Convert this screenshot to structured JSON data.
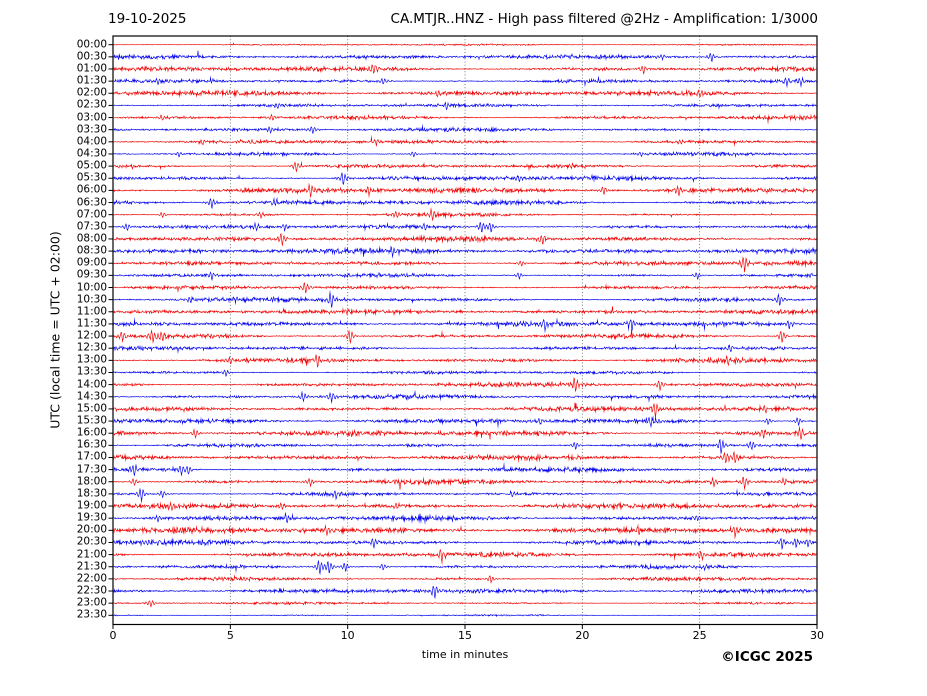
{
  "header": {
    "date": "19-10-2025",
    "title": "CA.MTJR..HNZ - High pass filtered @2Hz - Amplification: 1/3000"
  },
  "axes": {
    "x_title": "time in minutes",
    "y_title": "UTC (local time = UTC + 02:00)",
    "x_ticks": [
      "0",
      "5",
      "10",
      "15",
      "20",
      "25",
      "30"
    ]
  },
  "footer": {
    "credit": "©ICGC 2025"
  },
  "colors": {
    "trace_red": "#f00000",
    "trace_blue": "#0000f0",
    "grid": "#555555",
    "frame": "#000000"
  },
  "chart_data": {
    "type": "line",
    "subtype": "helicorder-seismogram",
    "title": "CA.MTJR..HNZ - High pass filtered @2Hz - Amplification: 1/3000",
    "date": "19-10-2025",
    "xlabel": "time in minutes",
    "ylabel": "UTC (local time = UTC + 02:00)",
    "xlim": [
      0,
      30
    ],
    "x_ticks": [
      0,
      5,
      10,
      15,
      20,
      25,
      30
    ],
    "grid": "vertical-dotted-at-5min",
    "row_interval_minutes": 30,
    "rows": [
      {
        "label": "00:00",
        "color": "red",
        "noise": 0.06,
        "events": []
      },
      {
        "label": "00:30",
        "color": "blue",
        "noise": 0.35,
        "events": [
          [
            23.4,
            0.25
          ],
          [
            25.5,
            0.5
          ]
        ]
      },
      {
        "label": "01:00",
        "color": "red",
        "noise": 0.5,
        "events": [
          [
            11.1,
            0.5
          ],
          [
            22.6,
            0.45
          ]
        ]
      },
      {
        "label": "01:30",
        "color": "blue",
        "noise": 0.5,
        "events": [
          [
            1.9,
            0.3
          ],
          [
            11.5,
            0.35
          ],
          [
            28.7,
            0.45
          ],
          [
            29.3,
            0.4
          ]
        ]
      },
      {
        "label": "02:00",
        "color": "red",
        "noise": 0.55,
        "events": [
          [
            13.8,
            0.35
          ],
          [
            25.0,
            0.3
          ]
        ]
      },
      {
        "label": "02:30",
        "color": "blue",
        "noise": 0.5,
        "events": [
          [
            7.0,
            0.3
          ],
          [
            14.2,
            0.35
          ]
        ]
      },
      {
        "label": "03:00",
        "color": "red",
        "noise": 0.5,
        "events": [
          [
            2.1,
            0.3
          ],
          [
            6.8,
            0.35
          ]
        ]
      },
      {
        "label": "03:30",
        "color": "blue",
        "noise": 0.45,
        "events": [
          [
            6.7,
            0.35
          ],
          [
            8.5,
            0.4
          ]
        ]
      },
      {
        "label": "04:00",
        "color": "red",
        "noise": 0.5,
        "events": [
          [
            3.8,
            0.3
          ],
          [
            11.2,
            0.3
          ],
          [
            24.2,
            0.3
          ]
        ]
      },
      {
        "label": "04:30",
        "color": "blue",
        "noise": 0.45,
        "events": [
          [
            2.8,
            0.3
          ],
          [
            12.8,
            0.3
          ],
          [
            22.5,
            0.3
          ]
        ]
      },
      {
        "label": "05:00",
        "color": "red",
        "noise": 0.55,
        "events": [
          [
            7.8,
            0.6
          ],
          [
            19.5,
            0.3
          ]
        ]
      },
      {
        "label": "05:30",
        "color": "blue",
        "noise": 0.5,
        "events": [
          [
            9.8,
            0.7
          ],
          [
            17.3,
            0.3
          ]
        ]
      },
      {
        "label": "06:00",
        "color": "red",
        "noise": 0.55,
        "events": [
          [
            8.4,
            0.65
          ],
          [
            10.9,
            0.4
          ],
          [
            20.9,
            0.45
          ],
          [
            24.1,
            0.6
          ]
        ]
      },
      {
        "label": "06:30",
        "color": "blue",
        "noise": 0.5,
        "events": [
          [
            4.2,
            0.6
          ],
          [
            6.9,
            0.4
          ]
        ]
      },
      {
        "label": "07:00",
        "color": "red",
        "noise": 0.5,
        "events": [
          [
            2.1,
            0.3
          ],
          [
            6.3,
            0.3
          ],
          [
            12.1,
            0.35
          ],
          [
            13.6,
            0.7
          ]
        ]
      },
      {
        "label": "07:30",
        "color": "blue",
        "noise": 0.5,
        "events": [
          [
            0.6,
            0.4
          ],
          [
            6.1,
            0.35
          ],
          [
            7.3,
            0.4
          ],
          [
            13.3,
            0.35
          ],
          [
            15.7,
            0.6
          ],
          [
            16.1,
            0.55
          ]
        ]
      },
      {
        "label": "08:00",
        "color": "red",
        "noise": 0.55,
        "events": [
          [
            7.2,
            0.75
          ],
          [
            18.3,
            0.55
          ]
        ]
      },
      {
        "label": "08:30",
        "color": "blue",
        "noise": 0.5,
        "events": [
          [
            11.9,
            0.5
          ]
        ]
      },
      {
        "label": "09:00",
        "color": "red",
        "noise": 0.55,
        "events": [
          [
            17.4,
            0.3
          ],
          [
            26.9,
            0.85
          ]
        ]
      },
      {
        "label": "09:30",
        "color": "blue",
        "noise": 0.5,
        "events": [
          [
            4.2,
            0.5
          ],
          [
            17.3,
            0.35
          ],
          [
            24.9,
            0.4
          ]
        ]
      },
      {
        "label": "10:00",
        "color": "red",
        "noise": 0.55,
        "events": [
          [
            8.2,
            0.6
          ]
        ]
      },
      {
        "label": "10:30",
        "color": "blue",
        "noise": 0.5,
        "events": [
          [
            3.3,
            0.35
          ],
          [
            5.2,
            0.35
          ],
          [
            9.3,
            0.85
          ],
          [
            28.4,
            0.65
          ]
        ]
      },
      {
        "label": "11:00",
        "color": "red",
        "noise": 0.4,
        "events": []
      },
      {
        "label": "11:30",
        "color": "blue",
        "noise": 0.45,
        "events": [
          [
            18.4,
            0.55
          ],
          [
            22.1,
            0.6
          ],
          [
            28.8,
            0.45
          ]
        ]
      },
      {
        "label": "12:00",
        "color": "red",
        "noise": 0.65,
        "events": [
          [
            0.4,
            0.5
          ],
          [
            1.7,
            0.65
          ],
          [
            2.1,
            0.6
          ],
          [
            10.1,
            0.75
          ],
          [
            28.5,
            0.7
          ]
        ]
      },
      {
        "label": "12:30",
        "color": "blue",
        "noise": 0.5,
        "events": [
          [
            26.3,
            0.4
          ]
        ]
      },
      {
        "label": "13:00",
        "color": "red",
        "noise": 0.55,
        "events": [
          [
            5.0,
            0.35
          ],
          [
            8.7,
            0.65
          ],
          [
            26.2,
            0.55
          ]
        ]
      },
      {
        "label": "13:30",
        "color": "blue",
        "noise": 0.45,
        "events": [
          [
            4.8,
            0.35
          ]
        ]
      },
      {
        "label": "14:00",
        "color": "red",
        "noise": 0.55,
        "events": [
          [
            19.7,
            0.75
          ],
          [
            23.3,
            0.55
          ]
        ]
      },
      {
        "label": "14:30",
        "color": "blue",
        "noise": 0.5,
        "events": [
          [
            8.1,
            0.55
          ],
          [
            9.3,
            0.6
          ]
        ]
      },
      {
        "label": "15:00",
        "color": "red",
        "noise": 0.55,
        "events": [
          [
            23.1,
            0.9
          ],
          [
            27.8,
            0.4
          ]
        ]
      },
      {
        "label": "15:30",
        "color": "blue",
        "noise": 0.5,
        "events": [
          [
            18.2,
            0.4
          ],
          [
            22.9,
            0.6
          ],
          [
            27.9,
            0.35
          ],
          [
            29.2,
            0.45
          ]
        ]
      },
      {
        "label": "16:00",
        "color": "red",
        "noise": 0.55,
        "events": [
          [
            3.5,
            0.45
          ],
          [
            27.7,
            0.45
          ],
          [
            29.3,
            0.7
          ]
        ]
      },
      {
        "label": "16:30",
        "color": "blue",
        "noise": 0.5,
        "events": [
          [
            19.7,
            0.4
          ],
          [
            25.9,
            0.85
          ],
          [
            27.2,
            0.45
          ]
        ]
      },
      {
        "label": "17:00",
        "color": "red",
        "noise": 0.55,
        "events": [
          [
            26.1,
            0.65
          ],
          [
            26.5,
            0.6
          ]
        ]
      },
      {
        "label": "17:30",
        "color": "blue",
        "noise": 0.5,
        "events": [
          [
            0.9,
            0.65
          ],
          [
            2.9,
            0.5
          ],
          [
            3.2,
            0.45
          ]
        ]
      },
      {
        "label": "18:00",
        "color": "red",
        "noise": 0.55,
        "events": [
          [
            0.9,
            0.4
          ],
          [
            8.4,
            0.45
          ],
          [
            25.6,
            0.55
          ],
          [
            26.9,
            0.7
          ],
          [
            28.6,
            0.4
          ]
        ]
      },
      {
        "label": "18:30",
        "color": "blue",
        "noise": 0.5,
        "events": [
          [
            1.2,
            0.75
          ],
          [
            2.1,
            0.4
          ],
          [
            9.5,
            0.45
          ],
          [
            17.0,
            0.3
          ]
        ]
      },
      {
        "label": "19:00",
        "color": "red",
        "noise": 0.5,
        "events": [
          [
            2.5,
            0.5
          ],
          [
            7.2,
            0.3
          ],
          [
            12.1,
            0.3
          ]
        ]
      },
      {
        "label": "19:30",
        "color": "blue",
        "noise": 0.45,
        "events": [
          [
            1.9,
            0.3
          ],
          [
            7.4,
            0.5
          ],
          [
            24.9,
            0.3
          ]
        ]
      },
      {
        "label": "20:00",
        "color": "red",
        "noise": 0.55,
        "events": [
          [
            9.1,
            0.5
          ],
          [
            22.4,
            0.4
          ],
          [
            26.5,
            0.75
          ]
        ]
      },
      {
        "label": "20:30",
        "color": "blue",
        "noise": 0.5,
        "events": [
          [
            1.3,
            0.3
          ],
          [
            11.1,
            0.5
          ],
          [
            28.5,
            0.6
          ],
          [
            29.1,
            0.55
          ],
          [
            29.6,
            0.5
          ]
        ]
      },
      {
        "label": "21:00",
        "color": "red",
        "noise": 0.5,
        "events": [
          [
            14.0,
            0.65
          ],
          [
            25.1,
            0.55
          ]
        ]
      },
      {
        "label": "21:30",
        "color": "blue",
        "noise": 0.5,
        "events": [
          [
            8.8,
            0.75
          ],
          [
            9.2,
            0.7
          ],
          [
            9.9,
            0.5
          ],
          [
            11.5,
            0.35
          ],
          [
            25.2,
            0.3
          ]
        ]
      },
      {
        "label": "22:00",
        "color": "red",
        "noise": 0.45,
        "events": [
          [
            16.1,
            0.4
          ]
        ]
      },
      {
        "label": "22:30",
        "color": "blue",
        "noise": 0.35,
        "events": [
          [
            13.7,
            0.75
          ],
          [
            15.6,
            0.3
          ]
        ]
      },
      {
        "label": "23:00",
        "color": "red",
        "noise": 0.15,
        "events": [
          [
            1.6,
            0.4
          ]
        ]
      },
      {
        "label": "23:30",
        "color": "blue",
        "noise": 0.08,
        "events": []
      }
    ]
  }
}
